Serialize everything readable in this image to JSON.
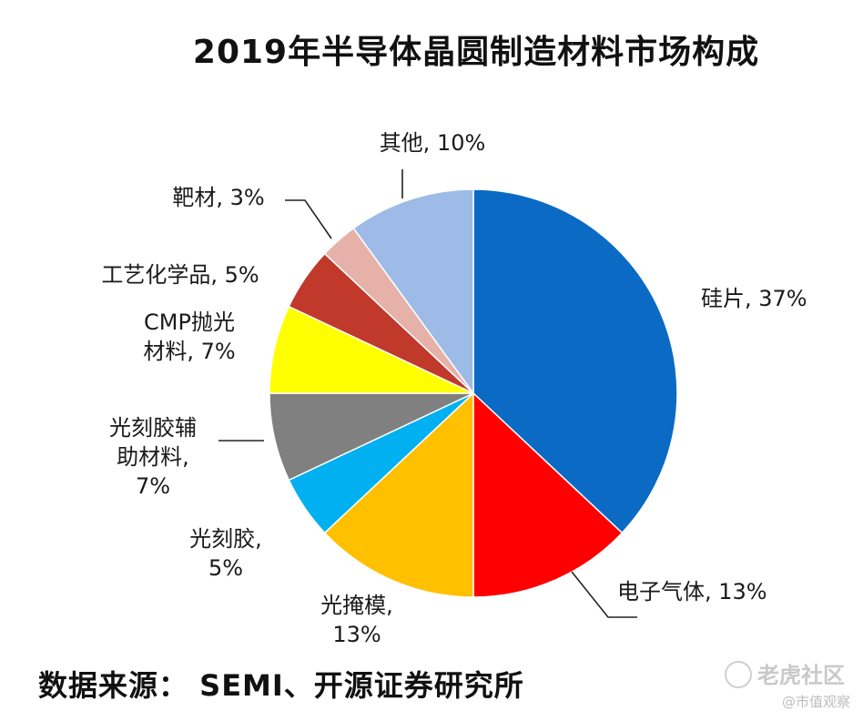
{
  "title": "2019年半导体晶圆制造材料市场构成",
  "chart_data": {
    "type": "pie",
    "title": "2019年半导体晶圆制造材料市场构成",
    "unit": "%",
    "slices": [
      {
        "name": "硅片",
        "value": 37,
        "color": "#0A6AC4",
        "label_lines": [
          "硅片, 37%"
        ]
      },
      {
        "name": "电子气体",
        "value": 13,
        "color": "#FF0000",
        "label_lines": [
          "电子气体, 13%"
        ]
      },
      {
        "name": "光掩模",
        "value": 13,
        "color": "#FFC000",
        "label_lines": [
          "光掩模,",
          "13%"
        ]
      },
      {
        "name": "光刻胶",
        "value": 5,
        "color": "#00B0F0",
        "label_lines": [
          "光刻胶,",
          "5%"
        ]
      },
      {
        "name": "光刻胶辅助材料",
        "value": 7,
        "color": "#808080",
        "label_lines": [
          "光刻胶辅",
          "助材料,",
          "7%"
        ]
      },
      {
        "name": "CMP抛光材料",
        "value": 7,
        "color": "#FFFF00",
        "label_lines": [
          "CMP抛光",
          "材料, 7%"
        ]
      },
      {
        "name": "工艺化学品",
        "value": 5,
        "color": "#C0392B",
        "label_lines": [
          "工艺化学品, 5%"
        ]
      },
      {
        "name": "靶材",
        "value": 3,
        "color": "#E6B1A8",
        "label_lines": [
          "靶材, 3%"
        ]
      },
      {
        "name": "其他",
        "value": 10,
        "color": "#9DBBE6",
        "label_lines": [
          "其他, 10%"
        ]
      }
    ]
  },
  "source": "数据来源：  SEMI、开源证券研究所",
  "watermark": {
    "brand": "老虎社区",
    "sub": "@市值观察"
  }
}
